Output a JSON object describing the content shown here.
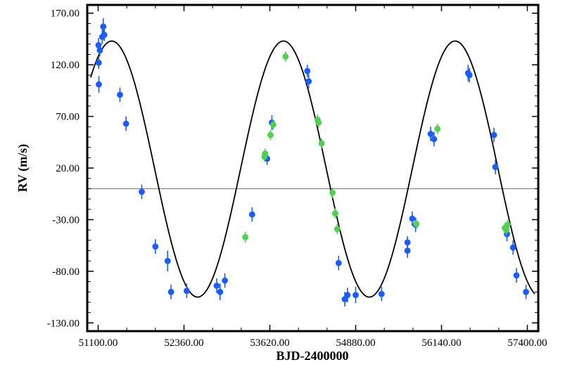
{
  "chart_data": {
    "type": "scatter",
    "xlabel": "BJD-2400000",
    "ylabel": "RV (m/s)",
    "xlim": [
      50940,
      57560
    ],
    "ylim": [
      -138,
      178
    ],
    "xticks": [
      51100,
      52360,
      53620,
      54880,
      56140,
      57400
    ],
    "xtick_labels": [
      "51100.00",
      "52360.00",
      "53620.00",
      "54880.00",
      "56140.00",
      "57400.00"
    ],
    "yticks": [
      170,
      120,
      70,
      20,
      -30,
      -80,
      -130
    ],
    "ytick_labels": [
      "170.00",
      "120.00",
      "70.00",
      "20.00",
      "-30.00",
      "-80.00",
      "-130.00"
    ],
    "zero_line": 0,
    "model": {
      "style": "sine",
      "offset": 19,
      "amplitude": 124,
      "period": 2520,
      "t_max": 51300
    },
    "series": [
      {
        "color": "#1a5cff",
        "points": [
          {
            "x": 51105,
            "y": 139,
            "err": 7
          },
          {
            "x": 51108,
            "y": 122,
            "err": 6
          },
          {
            "x": 51110,
            "y": 101,
            "err": 8
          },
          {
            "x": 51125,
            "y": 134,
            "err": 6
          },
          {
            "x": 51160,
            "y": 147,
            "err": 7
          },
          {
            "x": 51175,
            "y": 157,
            "err": 8
          },
          {
            "x": 51190,
            "y": 149,
            "err": 6
          },
          {
            "x": 51420,
            "y": 91,
            "err": 7
          },
          {
            "x": 51510,
            "y": 63,
            "err": 7
          },
          {
            "x": 51740,
            "y": -3,
            "err": 7
          },
          {
            "x": 51940,
            "y": -56,
            "err": 7
          },
          {
            "x": 52120,
            "y": -70,
            "err": 10
          },
          {
            "x": 52170,
            "y": -100,
            "err": 7
          },
          {
            "x": 52400,
            "y": -99,
            "err": 7
          },
          {
            "x": 52840,
            "y": -94,
            "err": 7
          },
          {
            "x": 52890,
            "y": -100,
            "err": 8
          },
          {
            "x": 52960,
            "y": -89,
            "err": 7
          },
          {
            "x": 53360,
            "y": -25,
            "err": 7
          },
          {
            "x": 53580,
            "y": 29,
            "err": 6
          },
          {
            "x": 53650,
            "y": 64,
            "err": 7
          },
          {
            "x": 54170,
            "y": 114,
            "err": 6
          },
          {
            "x": 54190,
            "y": 104,
            "err": 7
          },
          {
            "x": 54630,
            "y": -72,
            "err": 7
          },
          {
            "x": 54720,
            "y": -107,
            "err": 7
          },
          {
            "x": 54760,
            "y": -103,
            "err": 7
          },
          {
            "x": 54880,
            "y": -103,
            "err": 8
          },
          {
            "x": 55260,
            "y": -102,
            "err": 7
          },
          {
            "x": 55640,
            "y": -52,
            "err": 6
          },
          {
            "x": 55640,
            "y": -60,
            "err": 7
          },
          {
            "x": 55710,
            "y": -29,
            "err": 7
          },
          {
            "x": 55760,
            "y": -35,
            "err": 7
          },
          {
            "x": 55980,
            "y": 53,
            "err": 7
          },
          {
            "x": 56030,
            "y": 48,
            "err": 7
          },
          {
            "x": 56530,
            "y": 112,
            "err": 8
          },
          {
            "x": 56550,
            "y": 110,
            "err": 7
          },
          {
            "x": 56910,
            "y": 52,
            "err": 7
          },
          {
            "x": 56930,
            "y": 21,
            "err": 7
          },
          {
            "x": 57100,
            "y": -44,
            "err": 7
          },
          {
            "x": 57190,
            "y": -57,
            "err": 7
          },
          {
            "x": 57240,
            "y": -84,
            "err": 7
          },
          {
            "x": 57380,
            "y": -100,
            "err": 7
          }
        ]
      },
      {
        "color": "#4fd04f",
        "points": [
          {
            "x": 53260,
            "y": -47,
            "err": 5
          },
          {
            "x": 53540,
            "y": 31,
            "err": 5
          },
          {
            "x": 53550,
            "y": 34,
            "err": 5
          },
          {
            "x": 53630,
            "y": 52,
            "err": 5
          },
          {
            "x": 53670,
            "y": 62,
            "err": 5
          },
          {
            "x": 53850,
            "y": 128,
            "err": 5
          },
          {
            "x": 54320,
            "y": 67,
            "err": 5
          },
          {
            "x": 54335,
            "y": 64,
            "err": 5
          },
          {
            "x": 54380,
            "y": 44,
            "err": 5
          },
          {
            "x": 54540,
            "y": -4,
            "err": 5
          },
          {
            "x": 54580,
            "y": -24,
            "err": 5
          },
          {
            "x": 54610,
            "y": -39,
            "err": 5
          },
          {
            "x": 55770,
            "y": -34,
            "err": 5
          },
          {
            "x": 56080,
            "y": 58,
            "err": 5
          },
          {
            "x": 57070,
            "y": -38,
            "err": 5
          },
          {
            "x": 57090,
            "y": -40,
            "err": 5
          },
          {
            "x": 57110,
            "y": -35,
            "err": 5
          }
        ]
      }
    ]
  }
}
